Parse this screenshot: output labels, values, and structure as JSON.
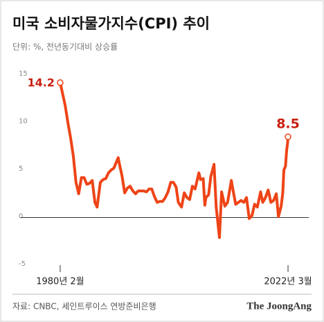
{
  "chart_data": {
    "type": "line",
    "title": "미국 소비자물가지수(CPI) 추이",
    "subtitle": "단위: %, 전년동기대비 상승률",
    "source": "자료: CNBC, 세인트루이스 연방준비은행",
    "brand": "The JoongAng",
    "x": [
      1980.083,
      1980.5,
      1981.0,
      1981.5,
      1982.0,
      1982.5,
      1983.0,
      1983.5,
      1984.0,
      1984.5,
      1985.0,
      1985.5,
      1986.0,
      1986.5,
      1986.9,
      1987.5,
      1988.0,
      1988.5,
      1989.0,
      1989.5,
      1990.0,
      1990.8,
      1991.0,
      1991.5,
      1992.0,
      1992.5,
      1993.0,
      1993.5,
      1994.0,
      1994.5,
      1995.0,
      1995.5,
      1996.0,
      1996.5,
      1997.0,
      1997.5,
      1998.0,
      1998.5,
      1999.0,
      1999.5,
      2000.0,
      2000.5,
      2001.0,
      2001.5,
      2001.9,
      2002.5,
      2003.0,
      2003.5,
      2004.0,
      2004.5,
      2005.0,
      2005.7,
      2006.0,
      2006.5,
      2006.8,
      2007.0,
      2007.5,
      2007.9,
      2008.5,
      2008.9,
      2009.5,
      2009.9,
      2010.5,
      2011.0,
      2011.7,
      2012.0,
      2012.5,
      2013.0,
      2013.5,
      2014.0,
      2014.5,
      2015.0,
      2015.5,
      2016.0,
      2016.5,
      2017.1,
      2017.5,
      2018.0,
      2018.5,
      2019.0,
      2019.5,
      2020.0,
      2020.4,
      2020.9,
      2021.2,
      2021.4,
      2021.7,
      2021.9,
      2022.1,
      2022.167
    ],
    "series": [
      {
        "name": "CPI",
        "color": "#ee4417",
        "values": [
          14.2,
          13.1,
          11.8,
          10.0,
          8.4,
          6.5,
          3.7,
          2.5,
          4.2,
          4.2,
          3.5,
          3.6,
          3.9,
          1.6,
          1.1,
          3.7,
          4.0,
          4.1,
          4.7,
          5.0,
          5.2,
          6.3,
          5.7,
          4.4,
          2.6,
          3.1,
          3.3,
          2.8,
          2.5,
          2.8,
          2.8,
          2.8,
          2.7,
          3.0,
          3.0,
          2.2,
          1.6,
          1.7,
          1.7,
          2.1,
          2.7,
          3.7,
          3.7,
          3.2,
          1.6,
          1.1,
          2.6,
          2.1,
          1.9,
          3.3,
          3.0,
          4.7,
          4.0,
          4.1,
          1.3,
          2.1,
          2.4,
          4.3,
          5.6,
          1.1,
          -2.1,
          2.7,
          1.2,
          1.6,
          3.9,
          2.9,
          1.4,
          1.6,
          1.8,
          1.6,
          2.1,
          -0.1,
          0.2,
          1.4,
          1.1,
          2.7,
          1.6,
          2.1,
          2.9,
          1.6,
          1.8,
          2.5,
          0.1,
          1.2,
          2.6,
          5.0,
          5.4,
          7.0,
          7.9,
          8.5
        ]
      }
    ],
    "xlim": [
      1972.8,
      2026.0
    ],
    "xticks": [
      {
        "value": 1980.083,
        "label": "1980년 2월"
      },
      {
        "value": 2022.167,
        "label": "2022년 3월"
      }
    ],
    "ylim": [
      -5,
      15
    ],
    "yticks": [
      15,
      10,
      5,
      0,
      -5
    ],
    "zero_line": true,
    "label_color": "#c8200f"
  }
}
